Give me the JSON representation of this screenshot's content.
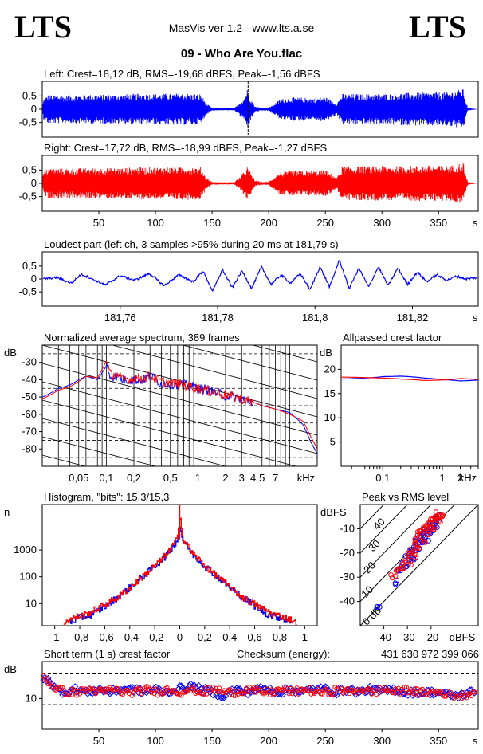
{
  "header": {
    "logo_left": "LTS",
    "logo_right": "LTS",
    "app_title": "MasVis ver 1.2 - www.lts.a.se",
    "file_name": "09 - Who Are You.flac"
  },
  "colors": {
    "left_channel": "#0000ff",
    "right_channel": "#ff0000",
    "axis": "#000000"
  },
  "chart_data": [
    {
      "id": "left-waveform",
      "type": "area",
      "title": "Left: Crest=18,12 dB, RMS=-19,68 dBFS, Peak=-1,56 dBFS",
      "ylim": [
        -1,
        1
      ],
      "yticks": [
        "0,5",
        "0",
        "-0,5"
      ],
      "xlim": [
        0,
        385
      ],
      "marker_time_s": 181.79,
      "envelope": {
        "time_s": [
          0,
          1,
          5,
          20,
          40,
          60,
          80,
          100,
          120,
          140,
          145,
          150,
          160,
          170,
          178,
          181,
          184,
          188,
          195,
          200,
          210,
          215,
          220,
          230,
          240,
          250,
          260,
          265,
          280,
          300,
          320,
          340,
          360,
          372,
          374,
          376,
          385
        ],
        "amplitude": [
          0.0,
          0.35,
          0.52,
          0.5,
          0.52,
          0.52,
          0.55,
          0.55,
          0.57,
          0.55,
          0.2,
          0.05,
          0.04,
          0.05,
          0.38,
          0.72,
          0.4,
          0.1,
          0.05,
          0.06,
          0.35,
          0.4,
          0.42,
          0.42,
          0.4,
          0.45,
          0.2,
          0.55,
          0.55,
          0.55,
          0.58,
          0.6,
          0.62,
          0.72,
          0.3,
          0.05,
          0.0
        ]
      }
    },
    {
      "id": "right-waveform",
      "type": "area",
      "title": "Right: Crest=17,72 dB, RMS=-18,99 dBFS, Peak=-1,27 dBFS",
      "ylim": [
        -1,
        1
      ],
      "yticks": [
        "0,5",
        "0",
        "-0,5"
      ],
      "xlim": [
        0,
        385
      ],
      "xticks": [
        50,
        100,
        150,
        200,
        250,
        300,
        350
      ],
      "xunit": "s",
      "envelope": {
        "time_s": [
          0,
          1,
          5,
          20,
          40,
          60,
          80,
          100,
          120,
          140,
          145,
          150,
          160,
          170,
          178,
          181,
          184,
          188,
          195,
          200,
          210,
          215,
          220,
          230,
          240,
          250,
          260,
          265,
          280,
          300,
          320,
          340,
          360,
          372,
          374,
          376,
          385
        ],
        "amplitude": [
          0.0,
          0.4,
          0.55,
          0.53,
          0.55,
          0.55,
          0.57,
          0.58,
          0.6,
          0.58,
          0.2,
          0.05,
          0.04,
          0.05,
          0.4,
          0.6,
          0.4,
          0.1,
          0.05,
          0.06,
          0.4,
          0.42,
          0.45,
          0.45,
          0.45,
          0.48,
          0.22,
          0.6,
          0.62,
          0.62,
          0.62,
          0.64,
          0.64,
          0.75,
          0.3,
          0.05,
          0.0
        ]
      }
    },
    {
      "id": "loudest-part",
      "type": "line",
      "title": "Loudest part (left  ch, 3 samples >95% during 20 ms at 181,79 s)",
      "ylim": [
        -1,
        1
      ],
      "yticks": [
        "0,5",
        "0",
        "-0,5"
      ],
      "xlim": [
        181.744,
        181.8335
      ],
      "xticks": [
        181.76,
        181.78,
        181.8,
        181.82
      ],
      "xticklabels": [
        "181,76",
        "181,78",
        "181,8",
        "181,82"
      ],
      "xunit": "s",
      "series": [
        {
          "time_s": [
            181.744,
            181.747,
            181.75,
            181.752,
            181.754,
            181.757,
            181.76,
            181.763,
            181.766,
            181.769,
            181.772,
            181.775,
            181.777,
            181.779,
            181.781,
            181.783,
            181.785,
            181.787,
            181.789,
            181.791,
            181.793,
            181.795,
            181.797,
            181.799,
            181.801,
            181.803,
            181.805,
            181.807,
            181.809,
            181.811,
            181.813,
            181.815,
            181.817,
            181.819,
            181.821,
            181.823,
            181.825,
            181.827,
            181.829,
            181.831,
            181.8335
          ],
          "amplitude": [
            0.0,
            0.05,
            -0.15,
            0.18,
            0.02,
            -0.22,
            0.12,
            -0.05,
            0.2,
            -0.25,
            0.15,
            -0.1,
            0.3,
            -0.45,
            0.35,
            -0.32,
            0.3,
            -0.35,
            0.45,
            -0.2,
            0.15,
            -0.15,
            0.2,
            -0.4,
            0.45,
            -0.3,
            0.7,
            -0.35,
            0.4,
            -0.3,
            0.45,
            -0.25,
            0.4,
            -0.2,
            0.25,
            -0.1,
            0.15,
            -0.05,
            0.1,
            0.0,
            0.05
          ]
        }
      ]
    },
    {
      "id": "average-spectrum",
      "type": "line",
      "title": "Normalized average spectrum, 389 frames",
      "ylabel": "dB",
      "ylim": [
        -90,
        -20
      ],
      "yticks": [
        -30,
        -40,
        -50,
        -60,
        -70,
        -80
      ],
      "xlabel": "kHz",
      "xlog": true,
      "xlim": [
        0.02,
        20
      ],
      "xticks": [
        0.05,
        0.1,
        0.2,
        0.5,
        1,
        2,
        3,
        4,
        5,
        7
      ],
      "xticklabels": [
        "0,05",
        "0,1",
        "0,2",
        "0,5",
        "1",
        "2",
        "3",
        "4",
        "5",
        "7"
      ],
      "series": [
        {
          "name": "left",
          "freq_khz": [
            0.02,
            0.03,
            0.04,
            0.05,
            0.06,
            0.08,
            0.1,
            0.11,
            0.13,
            0.15,
            0.2,
            0.25,
            0.3,
            0.4,
            0.5,
            0.7,
            1,
            1.5,
            2,
            3,
            4,
            5,
            7,
            10,
            14,
            17,
            20
          ],
          "db": [
            -50,
            -45,
            -43,
            -40,
            -38,
            -40,
            -32,
            -38,
            -38,
            -40,
            -40,
            -40,
            -38,
            -42,
            -42,
            -43,
            -45,
            -47,
            -49,
            -51,
            -53,
            -55,
            -57,
            -59,
            -66,
            -76,
            -83
          ]
        },
        {
          "name": "right",
          "freq_khz": [
            0.02,
            0.03,
            0.04,
            0.05,
            0.06,
            0.08,
            0.1,
            0.11,
            0.13,
            0.15,
            0.2,
            0.25,
            0.3,
            0.4,
            0.5,
            0.7,
            1,
            1.5,
            2,
            3,
            4,
            5,
            7,
            10,
            14,
            17,
            20
          ],
          "db": [
            -51,
            -46,
            -44,
            -41,
            -38,
            -39,
            -29,
            -37,
            -37,
            -40,
            -39,
            -39,
            -38,
            -41,
            -42,
            -43,
            -45,
            -47,
            -49,
            -51,
            -53,
            -55,
            -57,
            -60,
            -64,
            -73,
            -80
          ]
        }
      ]
    },
    {
      "id": "allpassed-crest",
      "type": "line",
      "title": "Allpassed crest factor",
      "ylabel": "dB",
      "ylim": [
        0,
        25
      ],
      "yticks": [
        20,
        15,
        10,
        5
      ],
      "xlabel": "kHz",
      "xlog": true,
      "xlim": [
        0.02,
        4
      ],
      "xticks": [
        0.1,
        1,
        2
      ],
      "xticklabels": [
        "0,1",
        "1",
        "2"
      ],
      "series": [
        {
          "name": "left",
          "freq_khz": [
            0.02,
            0.05,
            0.1,
            0.2,
            0.5,
            1,
            2,
            4
          ],
          "db": [
            18.0,
            18.2,
            18.5,
            18.6,
            18.2,
            17.9,
            17.6,
            17.8
          ]
        },
        {
          "name": "right",
          "freq_khz": [
            0.02,
            0.05,
            0.1,
            0.2,
            0.5,
            1,
            2,
            4
          ],
          "db": [
            18.4,
            18.3,
            18.2,
            18.0,
            17.7,
            17.8,
            18.1,
            17.9
          ]
        }
      ]
    },
    {
      "id": "histogram",
      "type": "line",
      "title": "Histogram, \"bits\": 15,3/15,3",
      "ylabel": "n",
      "ylog": true,
      "ylim": [
        1.5,
        50000
      ],
      "yticks": [
        10,
        100,
        1000
      ],
      "xlim": [
        -1.1,
        1.1
      ],
      "xticks": [
        -1,
        -0.8,
        -0.6,
        -0.4,
        -0.2,
        0,
        0.2,
        0.4,
        0.6,
        0.8,
        1
      ],
      "xticklabels": [
        "-1",
        "-0,8",
        "-0,6",
        "-0,4",
        "-0,2",
        "0",
        "0,2",
        "0,4",
        "0,6",
        "0,8",
        "1"
      ],
      "series": [
        {
          "name": "left",
          "x": [
            -0.88,
            -0.8,
            -0.7,
            -0.6,
            -0.5,
            -0.4,
            -0.3,
            -0.2,
            -0.1,
            -0.02,
            0,
            0.02,
            0.1,
            0.2,
            0.3,
            0.4,
            0.5,
            0.6,
            0.7,
            0.8,
            0.88
          ],
          "count": [
            2,
            3,
            4,
            8,
            17,
            40,
            100,
            250,
            700,
            2500,
            8000,
            2500,
            700,
            250,
            100,
            40,
            17,
            8,
            4,
            3,
            2
          ]
        },
        {
          "name": "right",
          "x": [
            -0.93,
            -0.85,
            -0.75,
            -0.65,
            -0.5,
            -0.4,
            -0.3,
            -0.2,
            -0.1,
            -0.02,
            0,
            0.02,
            0.1,
            0.2,
            0.3,
            0.4,
            0.5,
            0.65,
            0.75,
            0.85,
            0.93
          ],
          "count": [
            2,
            3,
            4,
            7,
            17,
            40,
            100,
            260,
            750,
            2700,
            30000,
            2700,
            750,
            260,
            100,
            40,
            17,
            7,
            4,
            3,
            2
          ]
        }
      ]
    },
    {
      "id": "peak-vs-rms",
      "type": "scatter",
      "title": "Peak vs RMS level",
      "ylabel": "dBFS",
      "xlabel": "dBFS",
      "xlim": [
        -50,
        0
      ],
      "ylim": [
        -50,
        0
      ],
      "xticks": [
        -40,
        -30,
        -20
      ],
      "yticks": [
        -10,
        -20,
        -30,
        -40
      ],
      "diagonal_labels": [
        "0 dB",
        "10",
        "20",
        "30",
        "40"
      ],
      "series": [
        {
          "name": "left",
          "points": [
            [
              -42,
              -43
            ],
            [
              -35,
              -32
            ],
            [
              -33,
              -28
            ],
            [
              -32,
              -25
            ],
            [
              -30,
              -22
            ],
            [
              -29,
              -20
            ],
            [
              -28,
              -18
            ],
            [
              -27,
              -17
            ],
            [
              -26,
              -15
            ],
            [
              -25,
              -13
            ],
            [
              -24,
              -12
            ],
            [
              -23,
              -11
            ],
            [
              -22,
              -10
            ],
            [
              -21,
              -9
            ],
            [
              -20,
              -8
            ],
            [
              -19,
              -7
            ],
            [
              -18,
              -6
            ],
            [
              -17,
              -5
            ],
            [
              -30,
              -25
            ],
            [
              -28,
              -22
            ],
            [
              -26,
              -19
            ],
            [
              -24,
              -16
            ],
            [
              -22,
              -14
            ],
            [
              -20,
              -11
            ],
            [
              -18,
              -9
            ]
          ]
        },
        {
          "name": "right",
          "points": [
            [
              -36,
              -30
            ],
            [
              -34,
              -27
            ],
            [
              -32,
              -26
            ],
            [
              -31,
              -24
            ],
            [
              -29,
              -21
            ],
            [
              -28,
              -19
            ],
            [
              -27,
              -16
            ],
            [
              -26,
              -14
            ],
            [
              -25,
              -12
            ],
            [
              -24,
              -11
            ],
            [
              -23,
              -10
            ],
            [
              -22,
              -9
            ],
            [
              -21,
              -8
            ],
            [
              -20,
              -7
            ],
            [
              -19,
              -6
            ],
            [
              -18,
              -5
            ],
            [
              -17,
              -4
            ],
            [
              -16,
              -4
            ],
            [
              -29,
              -24
            ],
            [
              -27,
              -21
            ],
            [
              -25,
              -18
            ],
            [
              -23,
              -15
            ],
            [
              -21,
              -12
            ],
            [
              -19,
              -10
            ],
            [
              -17,
              -7
            ]
          ]
        }
      ]
    },
    {
      "id": "short-term-crest",
      "type": "scatter",
      "title": "Short term (1 s) crest factor",
      "ylabel": "dB",
      "ylim": [
        0,
        22
      ],
      "yticks": [
        10
      ],
      "xlim": [
        0,
        385
      ],
      "xticks": [
        50,
        100,
        150,
        200,
        250,
        300,
        350
      ],
      "xunit": "s",
      "checksum_label": "Checksum (energy):",
      "checksum_value": "431 630 972 399 066",
      "series": [
        {
          "name": "left",
          "time_s": [
            2,
            5,
            8,
            12,
            20,
            30,
            40,
            50,
            60,
            70,
            80,
            90,
            100,
            110,
            120,
            130,
            140,
            150,
            160,
            170,
            180,
            190,
            200,
            210,
            220,
            230,
            240,
            250,
            260,
            270,
            280,
            290,
            300,
            310,
            320,
            330,
            340,
            350,
            360,
            370,
            378
          ],
          "db": [
            16,
            17,
            15,
            13,
            12,
            13,
            12,
            13,
            12,
            13,
            13,
            12,
            13,
            12,
            13,
            14,
            13,
            12,
            11,
            13,
            12,
            13,
            13,
            12,
            13,
            12,
            13,
            13,
            12,
            13,
            12,
            13,
            12,
            13,
            12,
            12,
            12,
            12,
            11,
            11,
            12
          ]
        },
        {
          "name": "right",
          "time_s": [
            3,
            6,
            9,
            14,
            22,
            32,
            42,
            52,
            62,
            72,
            82,
            92,
            102,
            112,
            122,
            132,
            142,
            152,
            162,
            172,
            182,
            192,
            202,
            212,
            222,
            232,
            242,
            252,
            262,
            272,
            282,
            292,
            302,
            312,
            322,
            332,
            342,
            352,
            362,
            372,
            380
          ],
          "db": [
            17,
            15,
            14,
            13,
            12,
            12,
            13,
            12,
            13,
            12,
            12,
            13,
            12,
            13,
            12,
            13,
            12,
            13,
            12,
            12,
            13,
            12,
            12,
            13,
            12,
            13,
            12,
            12,
            13,
            12,
            13,
            12,
            13,
            12,
            13,
            12,
            12,
            12,
            11,
            11,
            12
          ]
        }
      ]
    }
  ]
}
